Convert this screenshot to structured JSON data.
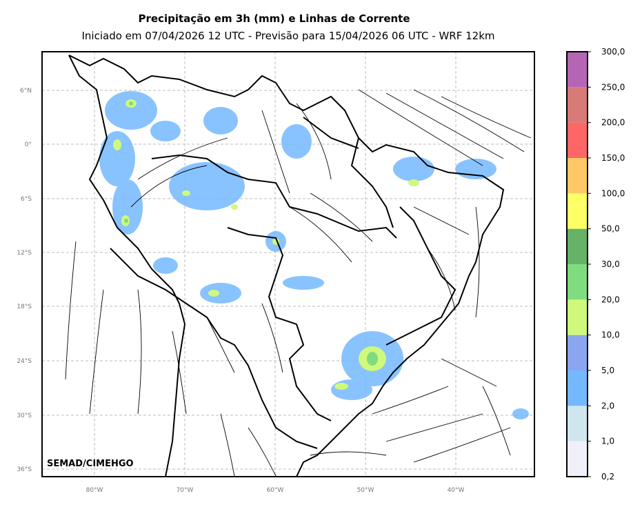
{
  "header": {
    "title": "Precipitação em 3h (mm) e Linhas de Corrente",
    "subtitle": "Iniciado em 07/04/2026 12 UTC - Previsão para 15/04/2026 06 UTC - WRF 12km"
  },
  "map": {
    "watermark": "SEMAD/CIMEHGO",
    "lat_labels": [
      "6°N",
      "0°",
      "6°S",
      "12°S",
      "18°S",
      "24°S",
      "30°S",
      "36°S"
    ],
    "lon_labels": [
      "80°W",
      "70°W",
      "60°W",
      "50°W",
      "40°W"
    ],
    "grid_color": "#bbbbbb",
    "streamline_color": "#000000",
    "border_color": "#000000"
  },
  "colorbar": {
    "levels": [
      "0,2",
      "1,0",
      "2,0",
      "5,0",
      "10,0",
      "20,0",
      "30,0",
      "50,0",
      "100,0",
      "150,0",
      "200,0",
      "250,0",
      "300,0"
    ],
    "colors": [
      "#f0f0fa",
      "#cfe6ef",
      "#74b9ff",
      "#8ba6ee",
      "#cff97b",
      "#7fdc7f",
      "#66b266",
      "#ffff66",
      "#ffc866",
      "#ff6666",
      "#d87a78",
      "#b466b4"
    ]
  }
}
